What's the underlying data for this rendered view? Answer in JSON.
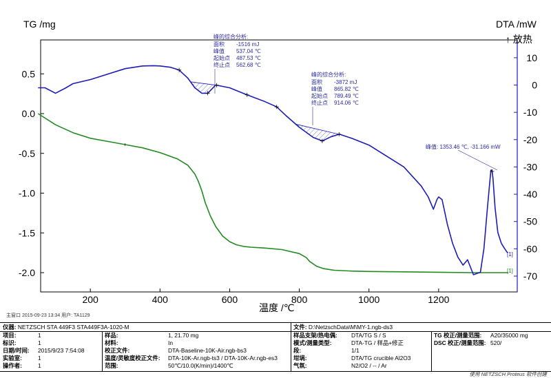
{
  "chart_data": {
    "type": "line",
    "xlabel": "温度 /℃",
    "ylabel_left": "TG /mg",
    "ylabel_right": "DTA /mW",
    "exo_label": "↑ 放热",
    "xlim": [
      50,
      1400
    ],
    "ylim_left": [
      -2.1,
      0.9
    ],
    "ylim_right": [
      -72,
      18
    ],
    "x_ticks": [
      200,
      400,
      600,
      800,
      1000,
      1200
    ],
    "left_ticks": [
      0.5,
      0.0,
      -0.5,
      -1.0,
      -1.5,
      -2.0
    ],
    "left_tick_labels": [
      "0.5",
      "0.0",
      "-0.5",
      "-1.0",
      "-1.5",
      "-2.0"
    ],
    "right_ticks": [
      10,
      0,
      -10,
      -20,
      -30,
      -40,
      -50,
      -60,
      -70
    ],
    "right_tick_labels": [
      "10",
      "0",
      "-10",
      "-20",
      "-30",
      "-40",
      "-50",
      "-60",
      "-70"
    ],
    "grid": false,
    "series": [
      {
        "axis": "left",
        "color": "#218a21",
        "x": [
          50,
          100,
          150,
          200,
          250,
          300,
          350,
          400,
          450,
          480,
          500,
          510,
          520,
          530,
          545,
          560,
          580,
          600,
          620,
          640,
          660,
          700,
          750,
          800,
          820,
          830,
          850,
          870,
          900,
          950,
          1000,
          1100,
          1200,
          1300,
          1400
        ],
        "values": [
          0.0,
          -0.14,
          -0.24,
          -0.31,
          -0.35,
          -0.39,
          -0.43,
          -0.49,
          -0.57,
          -0.65,
          -0.76,
          -0.85,
          -0.97,
          -1.12,
          -1.29,
          -1.42,
          -1.54,
          -1.61,
          -1.65,
          -1.67,
          -1.68,
          -1.69,
          -1.71,
          -1.76,
          -1.81,
          -1.86,
          -1.92,
          -1.95,
          -1.97,
          -1.98,
          -1.985,
          -1.99,
          -1.995,
          -2.0,
          -2.0
        ]
      },
      {
        "axis": "right",
        "color": "#1b1bb8",
        "x": [
          50,
          70,
          100,
          130,
          150,
          200,
          250,
          300,
          350,
          380,
          400,
          430,
          455,
          480,
          500,
          520,
          537,
          560,
          600,
          650,
          700,
          735,
          760,
          800,
          840,
          866,
          890,
          915,
          950,
          1000,
          1050,
          1100,
          1150,
          1170,
          1185,
          1195,
          1200,
          1210,
          1225,
          1240,
          1255,
          1270,
          1283,
          1300,
          1320,
          1330,
          1340,
          1350,
          1353,
          1356,
          1362,
          1370,
          1380,
          1390,
          1398
        ],
        "values": [
          -1,
          -1,
          -3,
          -1,
          0.5,
          2,
          4,
          6,
          7,
          7.1,
          7,
          6.5,
          5.5,
          2.5,
          -1,
          -3,
          -3,
          0,
          -1,
          -3.6,
          -6,
          -8,
          -11,
          -15.5,
          -19.2,
          -20.5,
          -19,
          -18,
          -19.5,
          -22,
          -26,
          -30,
          -37,
          -41,
          -45.5,
          -42,
          -41,
          -42,
          -51,
          -58,
          -63,
          -66,
          -64,
          -69.5,
          -68.6,
          -60,
          -45,
          -31.2,
          -31.2,
          -34,
          -45,
          -54,
          -58,
          -60,
          -61.5
        ]
      }
    ],
    "annotations": [
      {
        "title": "峰的综合分析:",
        "area_label": "面积",
        "area": "-1516 mJ",
        "peak_label": "峰值",
        "peak": "537.04 ℃",
        "onset_label": "起始点",
        "onset": "487.53 ℃",
        "end_label": "终止点",
        "end": "562.68 ℃"
      },
      {
        "title": "峰的综合分析:",
        "area_label": "面积",
        "area": "-3872 mJ",
        "peak_label": "峰值",
        "peak": "865.82 ℃",
        "onset_label": "起始点",
        "onset": "789.49 ℃",
        "end_label": "终止点",
        "end": "914.06 ℃"
      },
      {
        "text": "峰值: 1353.46 ℃, -31.166 mW"
      }
    ],
    "end_markers": [
      "[1]",
      "[1]"
    ]
  },
  "meta": {
    "operator_line": "主窗口   2015-09-23 13:34   用户: TA1129"
  },
  "info": {
    "instrument_label": "仪器:",
    "instrument": "NETZSCH STA 449F3 STA449F3A-1020-M",
    "file_label": "文件:",
    "file": "D:\\NetzschData\\M\\MY-1.ngb-ds3",
    "project_label": "项目:",
    "project": "1",
    "id_label": "标识:",
    "id": "1",
    "date_label": "日期/时间:",
    "date": "2015/9/23 7:54:08",
    "lab_label": "实验室:",
    "lab": "1",
    "op_label": "操作者:",
    "op": "1",
    "sample_label": "样品:",
    "sample": "1, 21.70 mg",
    "material_label": "材料:",
    "material": "In",
    "corr_label": "校正文件:",
    "corr": "DTA-Baseline-10K-Air.ngb-bs3",
    "temp_label": "温度/灵敏度校正文件:",
    "temp": "DTA-10K-Ar.ngb-ts3 / DTA-10K-Ar.ngb-es3",
    "range_label": "范围:",
    "range": "50℃/10.0(K/min)/1400℃",
    "holder_label": "样品支架/热电偶:",
    "holder": "DTA/TG S / S",
    "mode_label": "模式/测量类型:",
    "mode": "DTA-TG / 样品+修正",
    "seg_label": "段:",
    "seg": "1/1",
    "crucible_label": "坩埚:",
    "crucible": "DTA/TG crucible Al2O3",
    "gas_label": "气氛:",
    "gas": "N2/O2 / -- / Ar",
    "tg_label": "TG 校正/测量范围:",
    "tg": "A20/35000 mg",
    "dsc_label": "DSC 校正/测量范围:",
    "dsc": "520/"
  },
  "footer": "使用 NETZSCH Proteus 软件创建"
}
